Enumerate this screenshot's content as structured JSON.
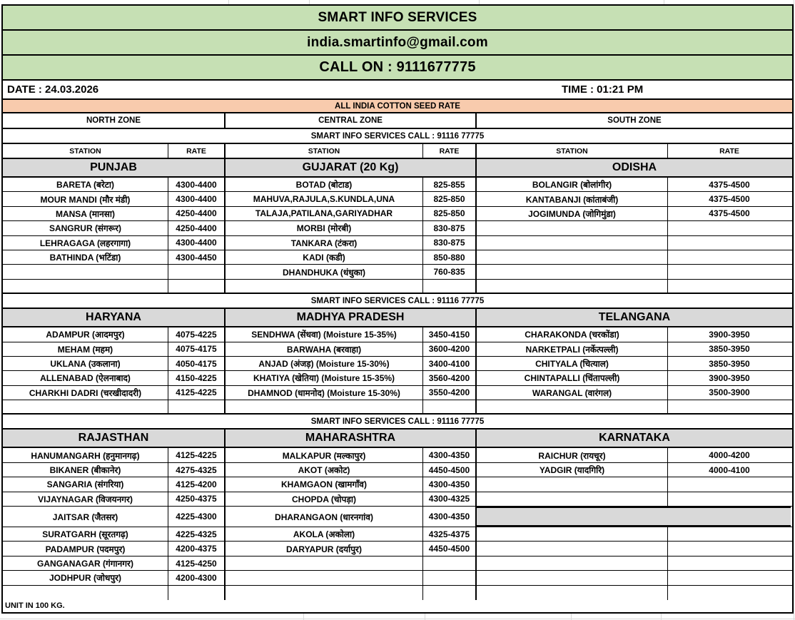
{
  "header": {
    "title": "SMART INFO SERVICES",
    "email": "india.smartinfo@gmail.com",
    "call": "CALL ON : 9111677775",
    "date": "DATE : 24.03.2026",
    "time": "TIME : 01:21 PM",
    "band": "ALL INDIA COTTON SEED RATE"
  },
  "zones": [
    "NORTH ZONE",
    "CENTRAL ZONE",
    "SOUTH ZONE"
  ],
  "banner": "SMART INFO SERVICES   CALL : 91116 77775",
  "column_headers": {
    "station": "STATION",
    "rate": "RATE"
  },
  "footer": {
    "unit": "UNIT IN 100 KG."
  },
  "colors": {
    "header_green": "#c6e0b4",
    "band_orange": "#f8cbad",
    "state_gray": "#d9d9d9",
    "border_black": "#000000"
  },
  "sections": [
    {
      "states": [
        "PUNJAB",
        "GUJARAT   (20 Kg)",
        "ODISHA"
      ],
      "rows": [
        {
          "cells": [
            "BARETA (बरेटा)",
            "4300-4400",
            "BOTAD (बोटाड)",
            "825-855",
            "BOLANGIR (बोलांगीर)",
            "4375-4500"
          ]
        },
        {
          "cells": [
            "MOUR MANDI (मौर मंडी)",
            "4300-4400",
            "MAHUVA,RAJULA,S.KUNDLA,UNA",
            "825-850",
            "KANTABANJI (कांताबंजी)",
            "4375-4500"
          ]
        },
        {
          "cells": [
            "MANSA (मानसा)",
            "4250-4400",
            "TALAJA,PATILANA,GARIYADHAR",
            "825-850",
            "JOGIMUNDA (जोगिमुंडा)",
            "4375-4500"
          ]
        },
        {
          "cells": [
            "SANGRUR (संगरूर)",
            "4250-4400",
            "MORBI (मोरबी)",
            "830-875",
            "",
            ""
          ]
        },
        {
          "cells": [
            "LEHRAGAGA (लहरगागा)",
            "4300-4400",
            "TANKARA (टंकरा)",
            "830-875",
            "",
            ""
          ]
        },
        {
          "cells": [
            "BATHINDA (भटिंडा)",
            "4300-4450",
            "KADI (कडी)",
            "850-880",
            "",
            ""
          ]
        },
        {
          "cells": [
            "",
            "",
            "DHANDHUKA (धंधुका)",
            "760-835",
            "",
            ""
          ]
        },
        {
          "cells": [
            "",
            "",
            "",
            "",
            "",
            ""
          ]
        }
      ]
    },
    {
      "states": [
        "HARYANA",
        "MADHYA PRADESH",
        "TELANGANA"
      ],
      "rows": [
        {
          "cells": [
            "ADAMPUR (आदमपुर)",
            "4075-4225",
            "SENDHWA  (सेंधवा) (Moisture 15-35%)",
            "3450-4150",
            "CHARAKONDA (चरकोंडा)",
            "3900-3950"
          ]
        },
        {
          "cells": [
            "MEHAM (महम)",
            "4075-4175",
            "BARWAHA (बरवाहा)",
            "3600-4200",
            "NARKETPALI (नर्केत्पल्ली)",
            "3850-3950"
          ]
        },
        {
          "cells": [
            "UKLANA (उकलाना)",
            "4050-4175",
            "ANJAD  (अंजड़) (Moisture 15-30%)",
            "3400-4100",
            "CHITYALA (चित्याल)",
            "3850-3950"
          ]
        },
        {
          "cells": [
            "ALLENABAD (ऐलनाबाद)",
            "4150-4225",
            "KHATIYA (खेतिया) (Moisture 15-35%)",
            "3560-4200",
            "CHINTAPALLI (चिंतापल्ली)",
            "3900-3950"
          ]
        },
        {
          "cells": [
            "CHARKHI DADRI (चरखीदादरी)",
            "4125-4225",
            "DHAMNOD (धामनोद) (Moisture 15-30%)",
            "3550-4200",
            "WARANGAL (वारंगल)",
            "3500-3900"
          ]
        },
        {
          "cells": [
            "",
            "",
            "",
            "",
            "",
            ""
          ]
        }
      ]
    },
    {
      "states": [
        "RAJASTHAN",
        "MAHARASHTRA",
        "KARNATAKA"
      ],
      "rows": [
        {
          "cells": [
            "HANUMANGARH (हनुमानगढ़)",
            "4125-4225",
            "MALKAPUR (मल्कापुर)",
            "4300-4350",
            "RAICHUR (रायचूर)",
            "4000-4200"
          ]
        },
        {
          "cells": [
            "BIKANER (बीकानेर)",
            "4275-4325",
            "AKOT (अकोट)",
            "4450-4500",
            "YADGIR (यादगिरि)",
            "4000-4100"
          ]
        },
        {
          "cells": [
            "SANGARIA (संगरिया)",
            "4125-4200",
            "KHAMGAON (खामगाँव)",
            "4300-4350",
            "",
            ""
          ]
        },
        {
          "cells": [
            "VIJAYNAGAR (विजयनगर)",
            "4250-4375",
            "CHOPDA (चोपड़ा)",
            "4300-4325",
            "",
            ""
          ]
        },
        {
          "cells": [
            "JAITSAR (जैतसर)",
            "4225-4300",
            "DHARANGAON (धारनगांव)",
            "4300-4350",
            "",
            ""
          ],
          "tall": true,
          "south_gray_band": true
        },
        {
          "cells": [
            "SURATGARH (सूरतगढ़)",
            "4225-4325",
            "AKOLA (अकोला)",
            "4325-4375",
            "",
            ""
          ]
        },
        {
          "cells": [
            "PADAMPUR (पदमपुर)",
            "4200-4375",
            "DARYAPUR (दर्यापुर)",
            "4450-4500",
            "",
            ""
          ]
        },
        {
          "cells": [
            "GANGANAGAR (गंगानगर)",
            "4125-4250",
            "",
            "",
            "",
            ""
          ]
        },
        {
          "cells": [
            "JODHPUR (जोधपुर)",
            "4200-4300",
            "",
            "",
            "",
            ""
          ]
        },
        {
          "cells": [
            "",
            "",
            "",
            "",
            "",
            ""
          ]
        }
      ]
    }
  ]
}
